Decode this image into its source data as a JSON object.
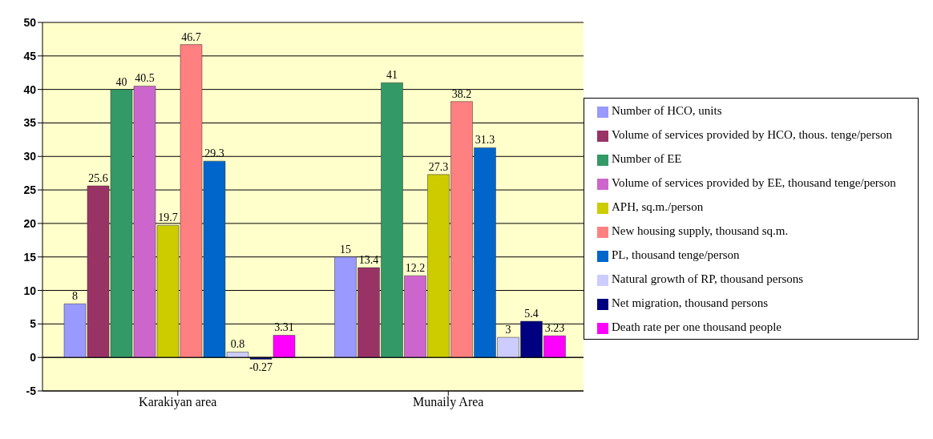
{
  "chart_data": {
    "type": "bar",
    "categories": [
      "Karakiyan area",
      "Munaily Area"
    ],
    "series": [
      {
        "name": "Number of HCO, units",
        "color": "#9999ff",
        "values": [
          8,
          15
        ]
      },
      {
        "name": "Volume of services provided by HCO, thous. tenge/person",
        "color": "#993366",
        "values": [
          25.6,
          13.4
        ]
      },
      {
        "name": "Number of EE",
        "color": "#339966",
        "values": [
          40,
          41
        ]
      },
      {
        "name": "Volume of services provided by EE, thousand tenge/person",
        "color": "#cc66cc",
        "values": [
          40.5,
          12.2
        ]
      },
      {
        "name": "APH, sq.m./person",
        "color": "#cccc00",
        "values": [
          19.7,
          27.3
        ]
      },
      {
        "name": "New housing supply, thousand sq.m.",
        "color": "#ff8080",
        "values": [
          46.7,
          38.2
        ]
      },
      {
        "name": "PL, thousand tenge/person",
        "color": "#0066cc",
        "values": [
          29.3,
          31.3
        ]
      },
      {
        "name": "Natural growth of RP, thousand persons",
        "color": "#ccccff",
        "values": [
          0.8,
          3
        ]
      },
      {
        "name": "Net migration, thousand persons",
        "color": "#000080",
        "values": [
          -0.27,
          5.4
        ]
      },
      {
        "name": "Death rate per one thousand people",
        "color": "#ff00ff",
        "values": [
          3.31,
          3.23
        ]
      }
    ],
    "ylim": [
      -5,
      50
    ],
    "yticks": [
      -5,
      0,
      5,
      10,
      15,
      20,
      25,
      30,
      35,
      40,
      45,
      50
    ],
    "grid": "y",
    "legend": "right",
    "data_labels": true
  }
}
